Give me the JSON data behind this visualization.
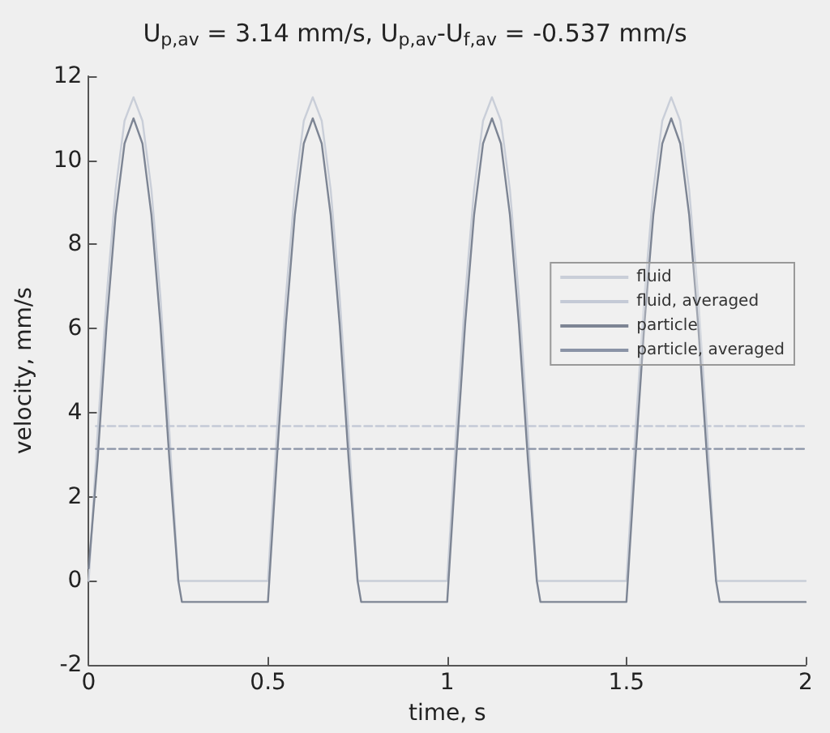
{
  "chart_data": {
    "type": "line",
    "title": "U$_{p,av}$ = 3.14 mm/s, U$_{p,av}$-U$_{f,av}$ = -0.537 mm/s",
    "xlabel": "time, s",
    "ylabel": "velocity, mm/s",
    "xlim": [
      0,
      2
    ],
    "xticks": [
      0,
      0.5,
      1,
      1.5,
      2
    ],
    "ylim": [
      -2,
      12
    ],
    "yticks": [
      -2,
      0,
      2,
      4,
      6,
      8,
      10,
      12
    ],
    "grid": false,
    "legend": "right",
    "marker": "none",
    "series": [
      {
        "name": "fluid",
        "color": "#c9ced8",
        "line_style": "solid",
        "x": [
          0,
          0.025,
          0.05,
          0.075,
          0.1,
          0.125,
          0.15,
          0.175,
          0.2,
          0.225,
          0.25,
          0.5,
          0.525,
          0.55,
          0.575,
          0.6,
          0.625,
          0.65,
          0.675,
          0.7,
          0.725,
          0.75,
          1,
          1.025,
          1.05,
          1.075,
          1.1,
          1.125,
          1.15,
          1.175,
          1.2,
          1.225,
          1.25,
          1.5,
          1.525,
          1.55,
          1.575,
          1.6,
          1.625,
          1.65,
          1.675,
          1.7,
          1.725,
          1.75,
          2
        ],
        "values": [
          0,
          3.55,
          6.76,
          9.3,
          10.94,
          11.5,
          10.94,
          9.3,
          6.76,
          3.55,
          0,
          0,
          3.55,
          6.76,
          9.3,
          10.94,
          11.5,
          10.94,
          9.3,
          6.76,
          3.55,
          0,
          0,
          3.55,
          6.76,
          9.3,
          10.94,
          11.5,
          10.94,
          9.3,
          6.76,
          3.55,
          0,
          0,
          3.55,
          6.76,
          9.3,
          10.94,
          11.5,
          10.94,
          9.3,
          6.76,
          3.55,
          0,
          0
        ]
      },
      {
        "name": "fluid, averaged",
        "color": "#c4cad6",
        "line_style": "dashed",
        "x": [
          0.02,
          2
        ],
        "values": [
          3.68,
          3.68
        ]
      },
      {
        "name": "particle",
        "color": "#7d8594",
        "line_style": "solid",
        "x": [
          0,
          0.025,
          0.05,
          0.075,
          0.1,
          0.125,
          0.15,
          0.175,
          0.2,
          0.225,
          0.25,
          0.26,
          0.5,
          0.525,
          0.55,
          0.575,
          0.6,
          0.625,
          0.65,
          0.675,
          0.7,
          0.725,
          0.75,
          0.76,
          1,
          1.025,
          1.05,
          1.075,
          1.1,
          1.125,
          1.15,
          1.175,
          1.2,
          1.225,
          1.25,
          1.26,
          1.5,
          1.525,
          1.55,
          1.575,
          1.6,
          1.625,
          1.65,
          1.675,
          1.7,
          1.725,
          1.75,
          1.76,
          2
        ],
        "values": [
          0.3,
          2.9,
          6.1,
          8.7,
          10.4,
          11,
          10.4,
          8.7,
          6.1,
          2.9,
          0,
          -0.5,
          -0.5,
          2.9,
          6.1,
          8.7,
          10.4,
          11,
          10.4,
          8.7,
          6.1,
          2.9,
          0,
          -0.5,
          -0.5,
          2.9,
          6.1,
          8.7,
          10.4,
          11,
          10.4,
          8.7,
          6.1,
          2.9,
          0,
          -0.5,
          -0.5,
          2.9,
          6.1,
          8.7,
          10.4,
          11,
          10.4,
          8.7,
          6.1,
          2.9,
          0,
          -0.5,
          -0.5
        ]
      },
      {
        "name": "particle, averaged",
        "color": "#8a93a6",
        "line_style": "dashed",
        "x": [
          0.02,
          2
        ],
        "values": [
          3.14,
          3.14
        ]
      }
    ]
  }
}
